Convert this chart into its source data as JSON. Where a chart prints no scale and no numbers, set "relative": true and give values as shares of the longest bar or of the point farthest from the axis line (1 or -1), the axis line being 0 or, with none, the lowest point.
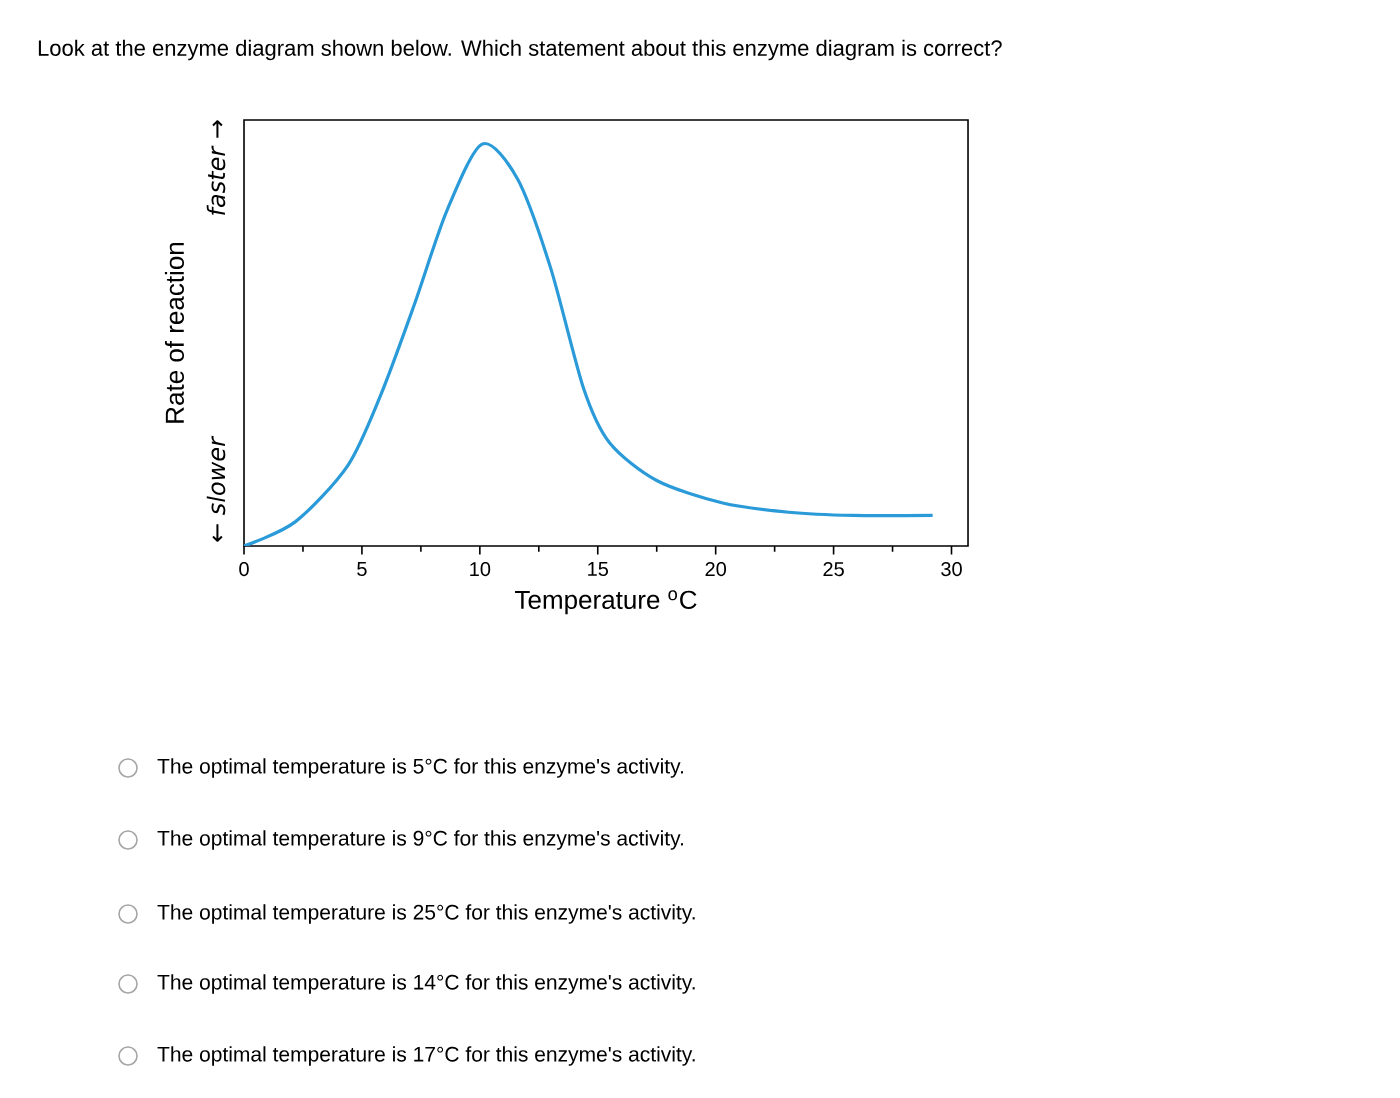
{
  "chart_data": {
    "type": "line",
    "title": "Look at the enzyme diagram shown below. Which statement about this enzyme diagram is correct?",
    "xlabel": "Temperature $^{o}$C",
    "ylabel": "Rate of reaction",
    "relative": true,
    "color": "#2a9bd8",
    "xlim": [
      0,
      30.7
    ],
    "xticks": [
      0,
      5,
      10,
      15,
      20,
      25,
      30
    ],
    "x": [
      0,
      2.17,
      4.4,
      5.8,
      7.2,
      8.6,
      10.1,
      11.6,
      13.0,
      14.4,
      15.5,
      17.5,
      20.3,
      23.1,
      25.8,
      29.2
    ],
    "values": [
      0,
      0.06,
      0.2,
      0.376,
      0.597,
      0.834,
      1,
      0.913,
      0.692,
      0.392,
      0.257,
      0.163,
      0.107,
      0.084,
      0.076,
      0.076
    ],
    "annotations": [
      "← slower",
      "faster →",
      "The optimal temperature is 5°C for this enzyme's activity.",
      "The optimal temperature is 9°C for this enzyme's activity.",
      "The optimal temperature is 25°C for this enzyme's activity.",
      "The optimal temperature is 14°C for this enzyme's activity.",
      "The optimal temperature is 17°C for this enzyme's activity."
    ]
  }
}
